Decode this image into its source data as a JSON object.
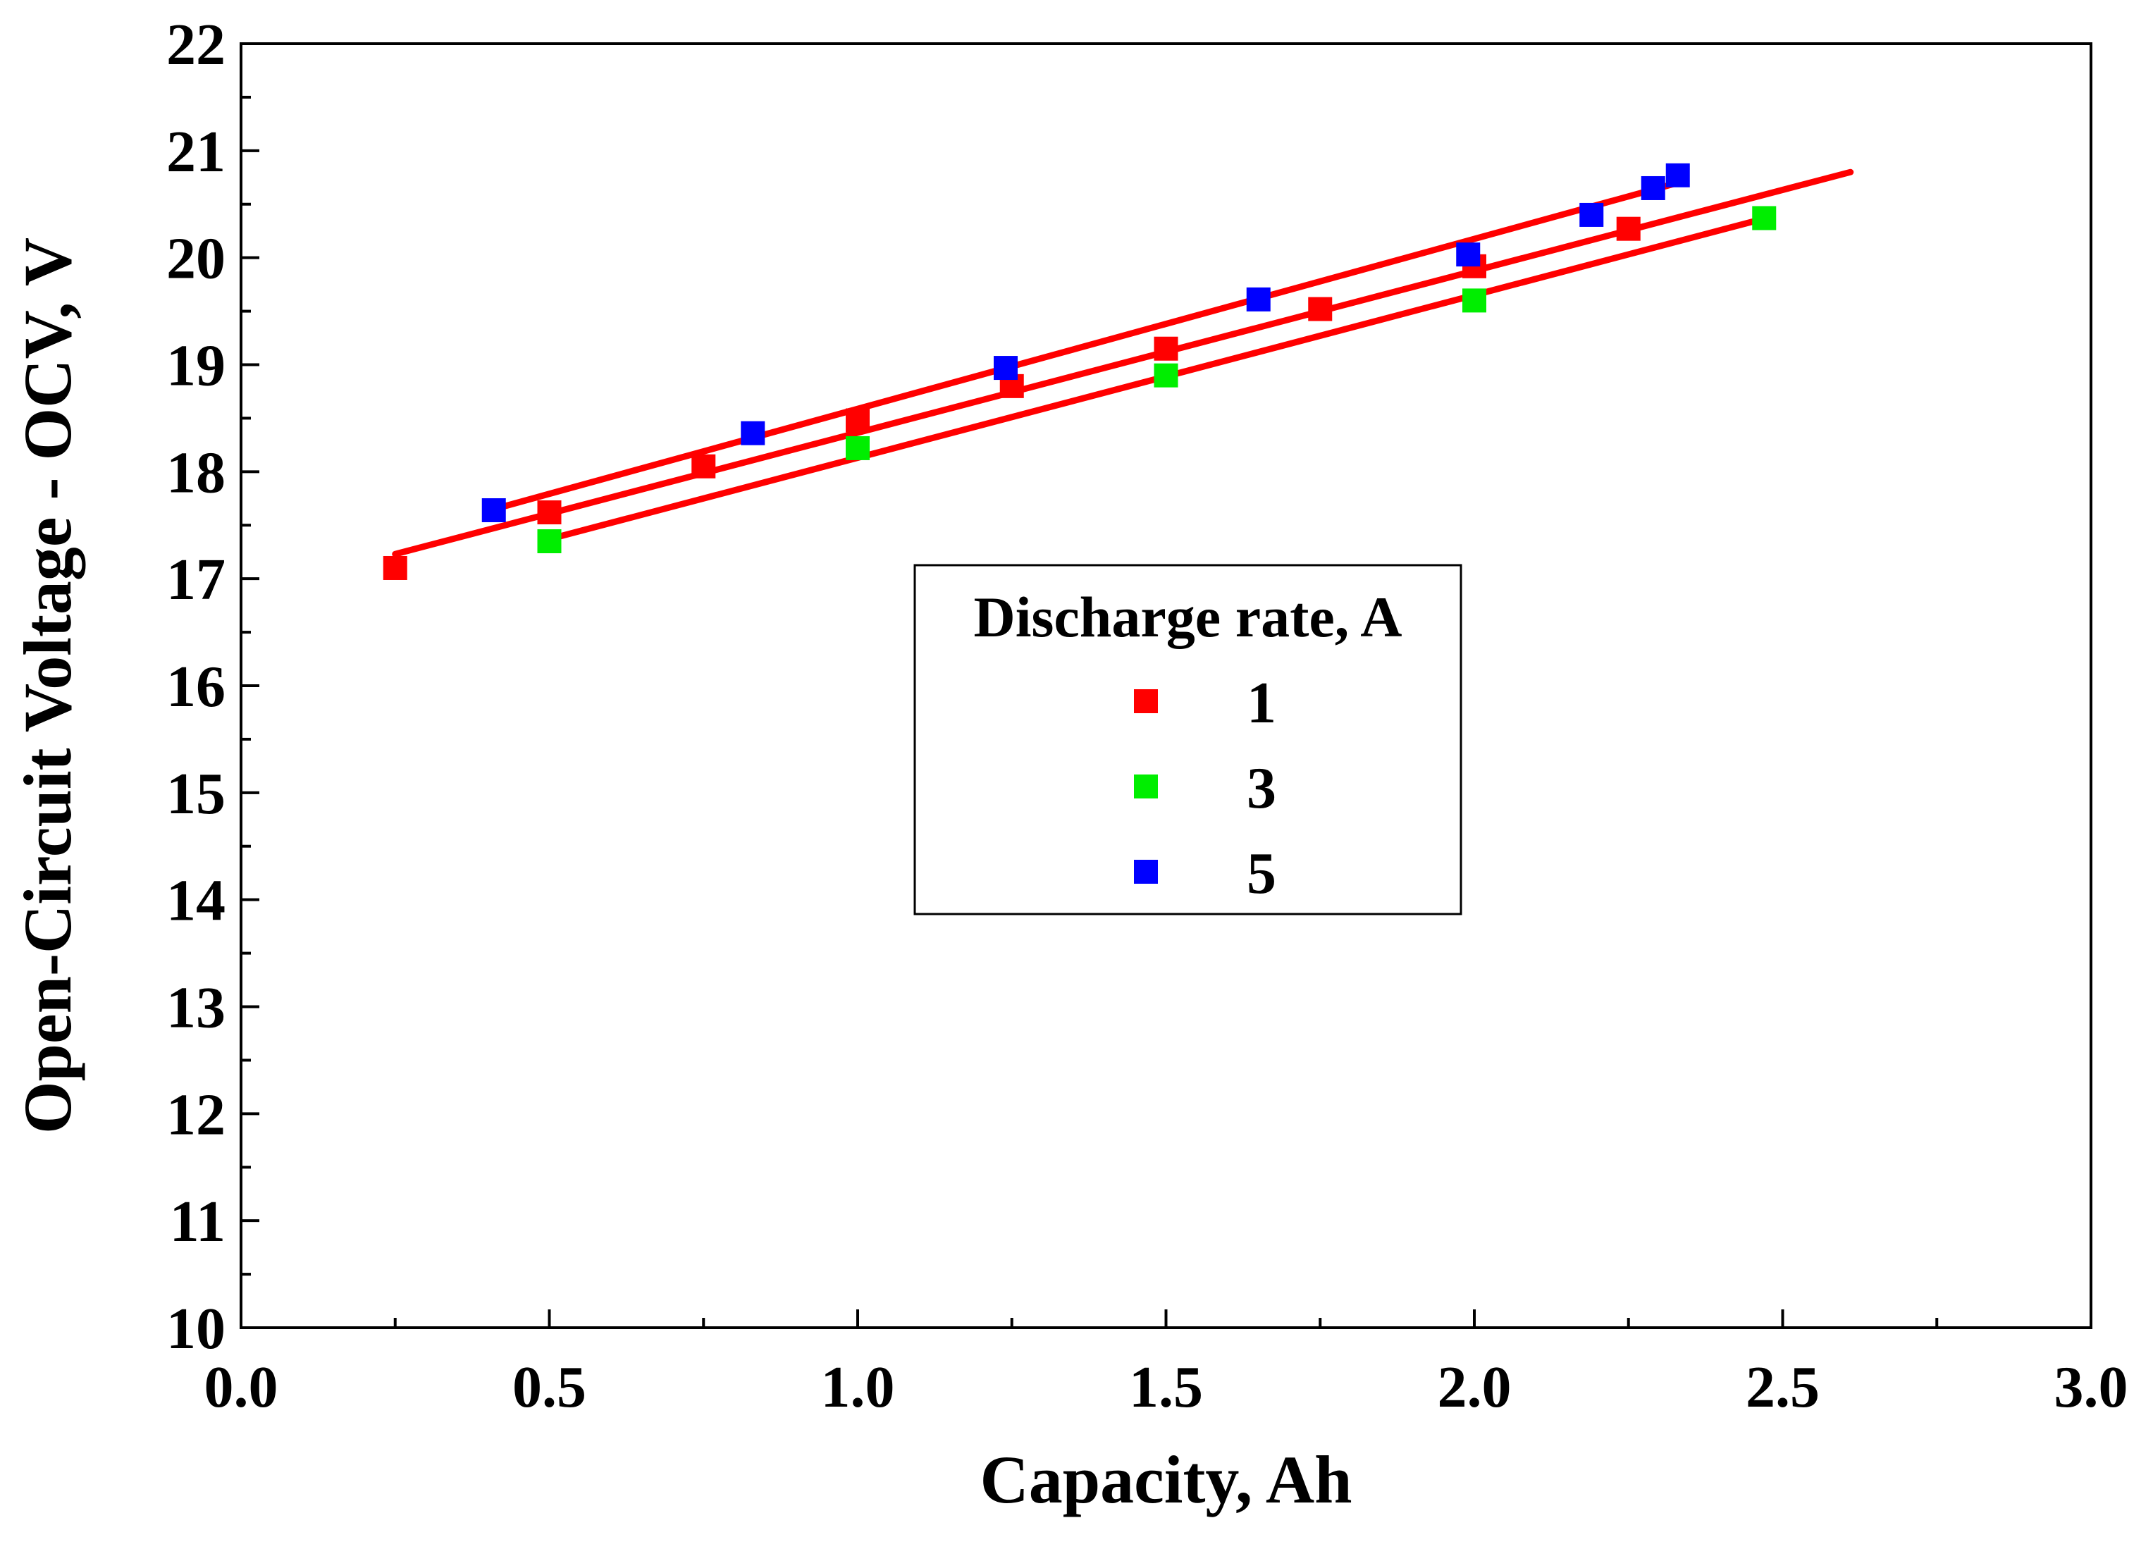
{
  "chart_data": {
    "type": "scatter",
    "xlabel": "Capacity, Ah",
    "ylabel": "Open-Circuit Voltage - OCV, V",
    "xlim": [
      0,
      3
    ],
    "ylim": [
      10,
      22
    ],
    "x_ticks": [
      0.0,
      0.5,
      1.0,
      1.5,
      2.0,
      2.5,
      3.0
    ],
    "x_tick_labels": [
      "0.0",
      "0.5",
      "1.0",
      "1.5",
      "2.0",
      "2.5",
      "3.0"
    ],
    "y_ticks": [
      10,
      11,
      12,
      13,
      14,
      15,
      16,
      17,
      18,
      19,
      20,
      21,
      22
    ],
    "y_tick_labels": [
      "10",
      "11",
      "12",
      "13",
      "14",
      "15",
      "16",
      "17",
      "18",
      "19",
      "20",
      "21",
      "22"
    ],
    "grid": false,
    "legend": {
      "title": "Discharge rate, A",
      "position": "center"
    },
    "series": [
      {
        "name": "1",
        "color": "#ff0000",
        "x": [
          0.25,
          0.5,
          0.75,
          1.0,
          1.25,
          1.5,
          1.75,
          2.0,
          2.25
        ],
        "y": [
          17.1,
          17.62,
          18.05,
          18.48,
          18.8,
          19.15,
          19.52,
          19.92,
          20.27
        ],
        "fit": {
          "x_start": 0.25,
          "y_start": 17.23,
          "x_end": 2.61,
          "y_end": 20.8,
          "color": "#ff0000"
        }
      },
      {
        "name": "3",
        "color": "#00ee00",
        "x": [
          0.5,
          1.0,
          1.5,
          2.0,
          2.47
        ],
        "y": [
          17.35,
          18.22,
          18.9,
          19.6,
          20.37
        ],
        "fit": {
          "x_start": 0.5,
          "y_start": 17.37,
          "x_end": 2.46,
          "y_end": 20.35,
          "color": "#ff0000"
        }
      },
      {
        "name": "5",
        "color": "#0000ff",
        "x": [
          0.41,
          0.83,
          1.24,
          1.65,
          1.99,
          2.19,
          2.29,
          2.33
        ],
        "y": [
          17.64,
          18.36,
          18.97,
          19.61,
          20.03,
          20.4,
          20.65,
          20.77
        ],
        "fit": {
          "x_start": 0.41,
          "y_start": 17.65,
          "x_end": 2.33,
          "y_end": 20.7,
          "color": "#ff0000"
        }
      }
    ]
  }
}
